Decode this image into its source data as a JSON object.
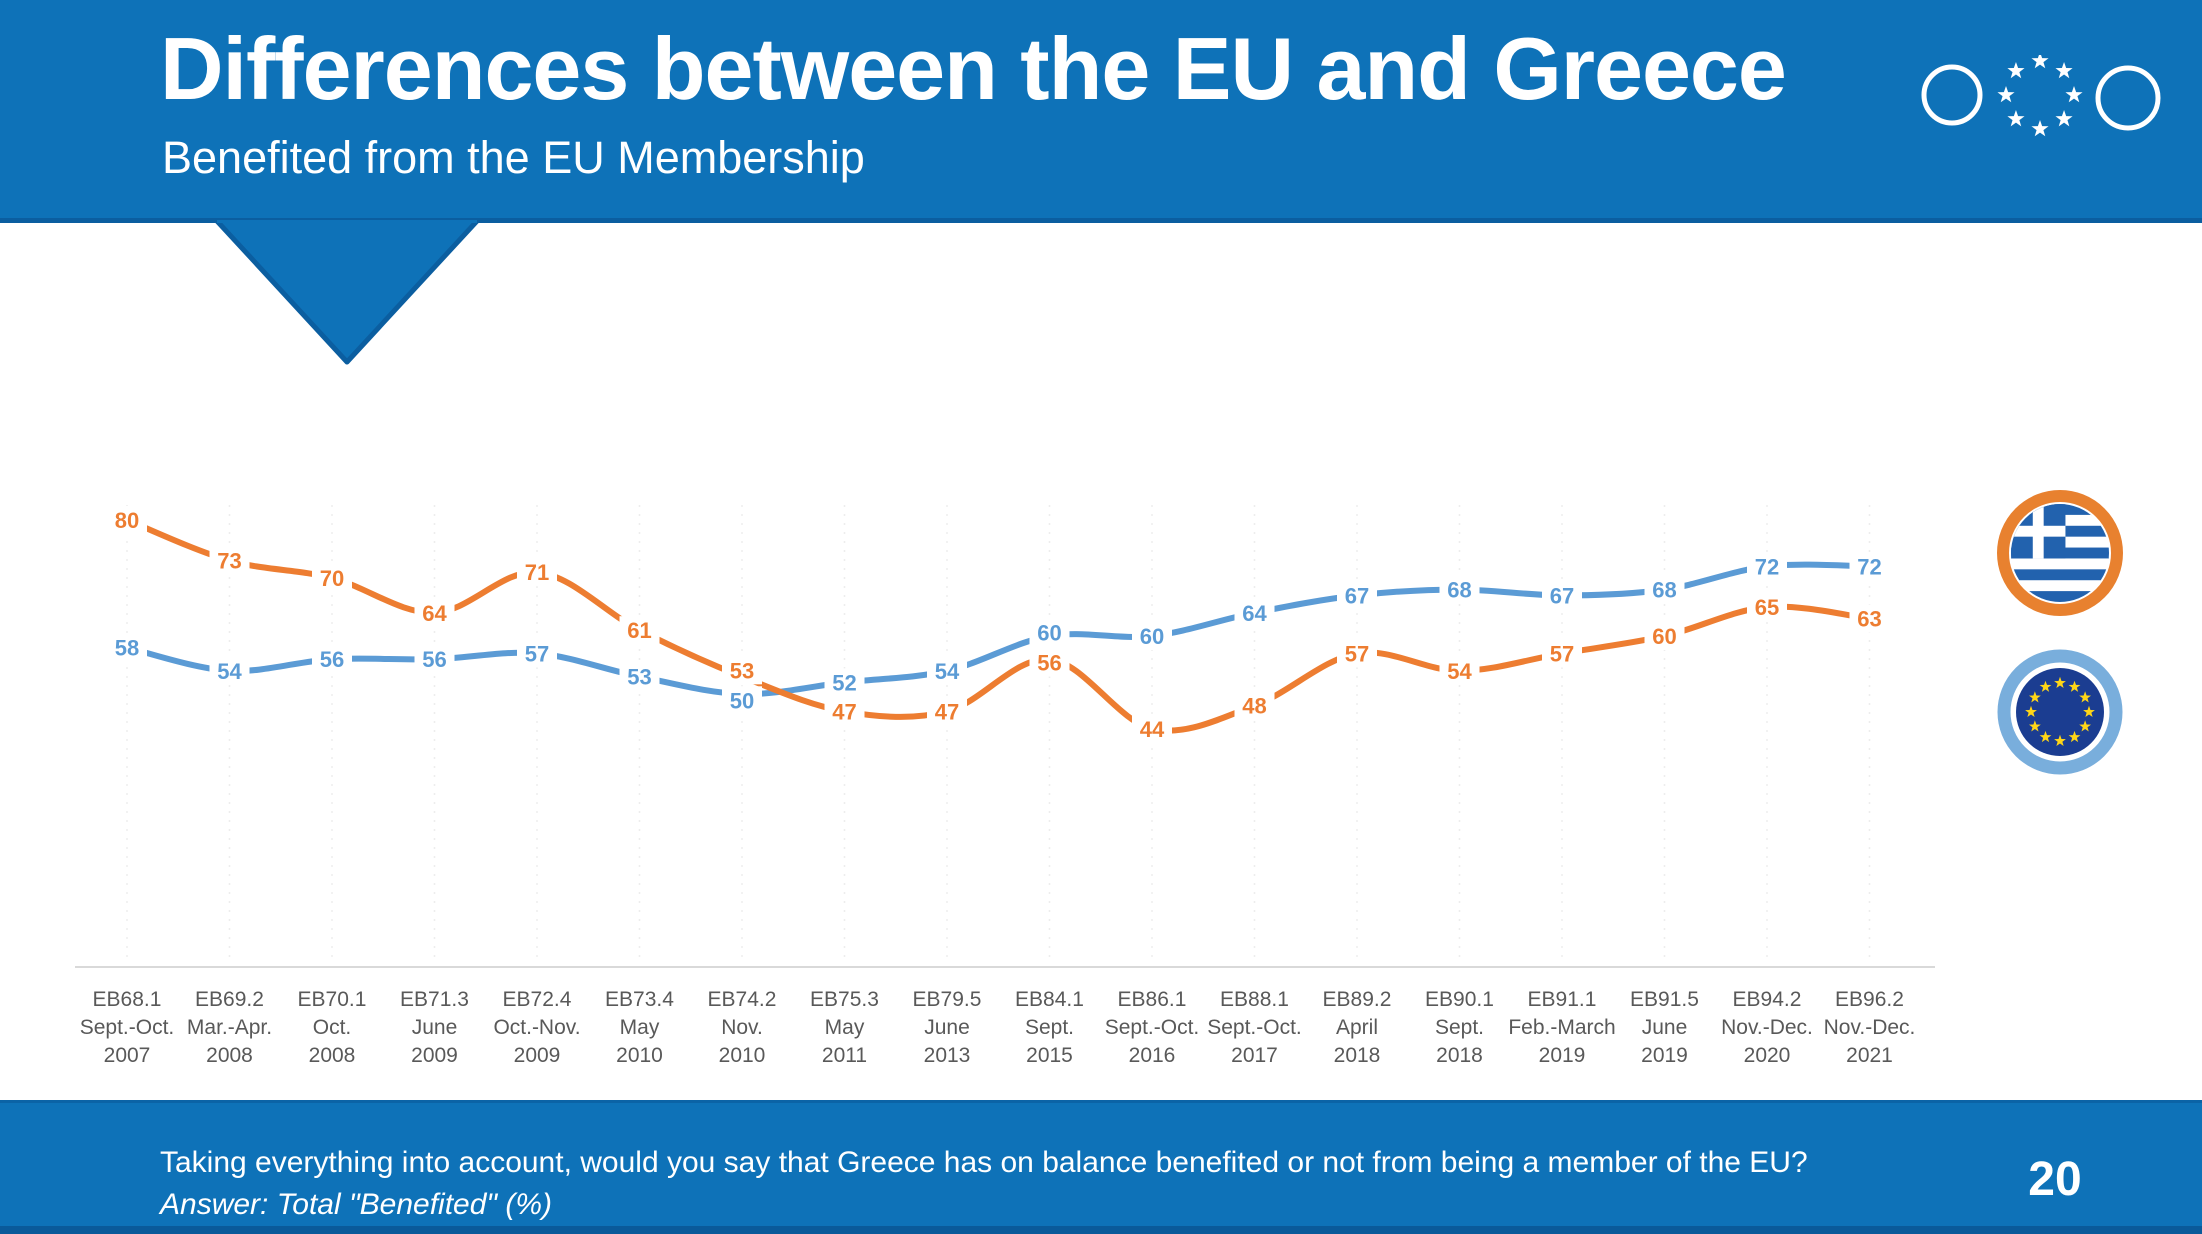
{
  "header": {
    "title": "Differences between the EU and Greece",
    "subtitle": "Benefited from the EU Membership"
  },
  "colors": {
    "header_blue": "#0E72B8",
    "header_edge_dark_blue": "#0B5EA0",
    "series_eu_blue": "#5B9BD5",
    "series_greece_orange": "#ED7D31",
    "axis_label_gray": "#595959",
    "axis_line_gray": "#D9D9D9",
    "greek_flag_ring_orange": "#E8812F",
    "greek_flag_blue": "#2262AE",
    "eu_flag_ring_light_blue": "#79AEDC",
    "eu_flag_navy": "#1B3D91",
    "eu_star_yellow": "#FFD617"
  },
  "legend": {
    "greece_badge": "greece-flag-icon",
    "eu_badge": "eu-flag-icon"
  },
  "chart_data": {
    "type": "line",
    "title": "",
    "xlabel": "",
    "ylabel": "",
    "ylim": [
      0,
      100
    ],
    "yaxis_visible": false,
    "grid": "faint vertical dotted lines per category",
    "legend_position": "right (circular flag badges: orange ring = Greece, blue ring = EU)",
    "data_labels": true,
    "categories": [
      {
        "eb": "EB68.1",
        "period": "Sept.-Oct.",
        "year": "2007"
      },
      {
        "eb": "EB69.2",
        "period": "Mar.-Apr.",
        "year": "2008"
      },
      {
        "eb": "EB70.1",
        "period": "Oct.",
        "year": "2008"
      },
      {
        "eb": "EB71.3",
        "period": "June",
        "year": "2009"
      },
      {
        "eb": "EB72.4",
        "period": "Oct.-Nov.",
        "year": "2009"
      },
      {
        "eb": "EB73.4",
        "period": "May",
        "year": "2010"
      },
      {
        "eb": "EB74.2",
        "period": "Nov.",
        "year": "2010"
      },
      {
        "eb": "EB75.3",
        "period": "May",
        "year": "2011"
      },
      {
        "eb": "EB79.5",
        "period": "June",
        "year": "2013"
      },
      {
        "eb": "EB84.1",
        "period": "Sept.",
        "year": "2015"
      },
      {
        "eb": "EB86.1",
        "period": "Sept.-Oct.",
        "year": "2016"
      },
      {
        "eb": "EB88.1",
        "period": "Sept.-Oct.",
        "year": "2017"
      },
      {
        "eb": "EB89.2",
        "period": "April",
        "year": "2018"
      },
      {
        "eb": "EB90.1",
        "period": "Sept.",
        "year": "2018"
      },
      {
        "eb": "EB91.1",
        "period": "Feb.-March",
        "year": "2019"
      },
      {
        "eb": "EB91.5",
        "period": "June",
        "year": "2019"
      },
      {
        "eb": "EB94.2",
        "period": "Nov.-Dec.",
        "year": "2020"
      },
      {
        "eb": "EB96.2",
        "period": "Nov.-Dec.",
        "year": "2021"
      }
    ],
    "series": [
      {
        "name": "EU",
        "color": "#5B9BD5",
        "values": [
          58,
          54,
          56,
          56,
          57,
          53,
          50,
          52,
          54,
          60,
          60,
          64,
          67,
          68,
          67,
          68,
          72,
          72
        ]
      },
      {
        "name": "Greece",
        "color": "#ED7D31",
        "values": [
          80,
          73,
          70,
          64,
          71,
          61,
          53,
          47,
          47,
          56,
          44,
          48,
          57,
          54,
          57,
          60,
          65,
          63
        ]
      }
    ]
  },
  "footer": {
    "question": "Taking everything into account, would you say that Greece has on balance benefited or not from being a member  of the EU?",
    "answer": "Answer: Total \"Benefited\" (%)",
    "page": "20"
  }
}
